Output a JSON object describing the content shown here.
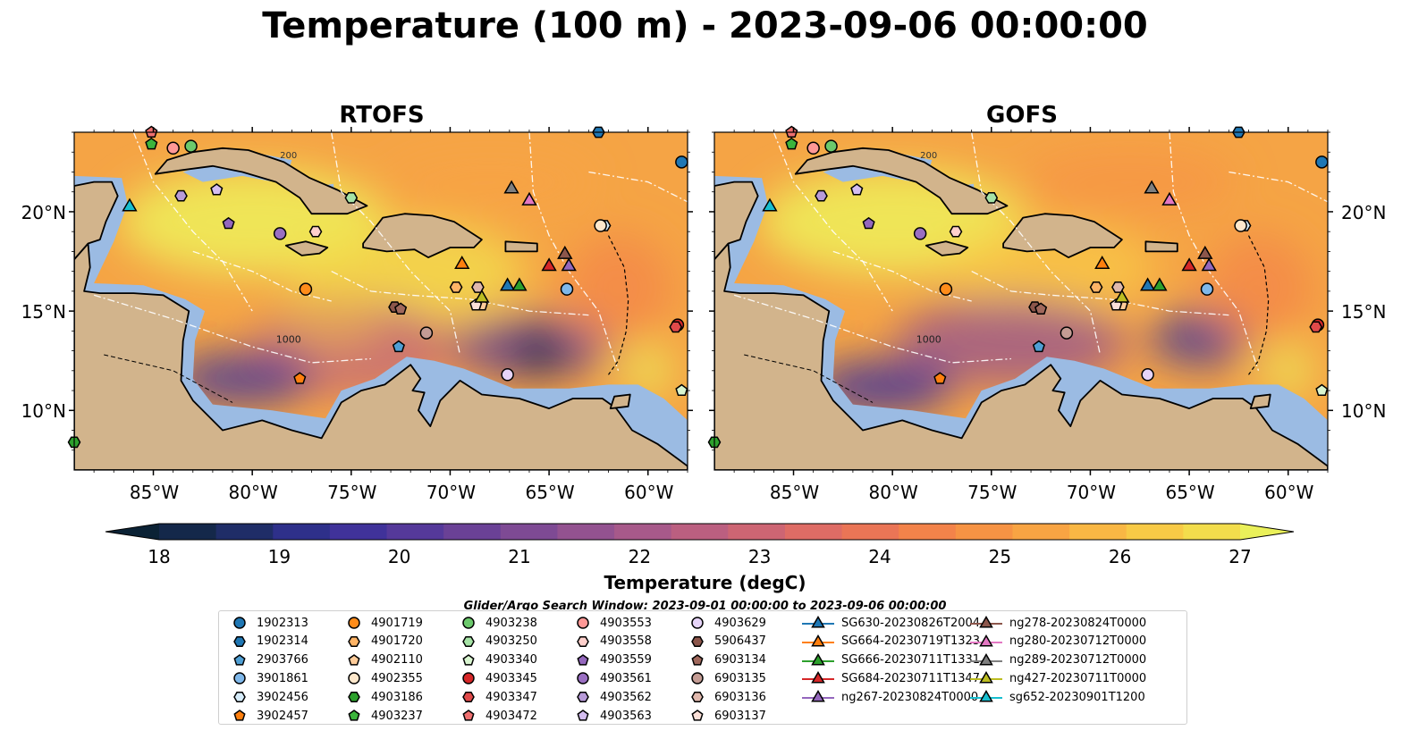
{
  "title": "Temperature (100 m) - 2023-09-06 00:00:00",
  "panels": [
    {
      "title": "RTOFS"
    },
    {
      "title": "GOFS"
    }
  ],
  "chart_data": {
    "type": "heatmap",
    "title": "Temperature (100 m) - 2023-09-06 00:00:00",
    "subplots": [
      "RTOFS",
      "GOFS"
    ],
    "xlim": [
      -89,
      -58
    ],
    "ylim": [
      7,
      24
    ],
    "xticks": [
      -85,
      -80,
      -75,
      -70,
      -65,
      -60
    ],
    "xtick_labels": [
      "85°W",
      "80°W",
      "75°W",
      "70°W",
      "65°W",
      "60°W"
    ],
    "yticks": [
      10,
      15,
      20
    ],
    "ytick_labels": [
      "10°N",
      "15°N",
      "20°N"
    ],
    "colorbar": {
      "label": "Temperature (degC)",
      "min": 18,
      "max": 27,
      "ticks": [
        18,
        19,
        20,
        21,
        22,
        23,
        24,
        25,
        26,
        27
      ],
      "tick_labels": [
        "18",
        "19",
        "20",
        "21",
        "22",
        "23",
        "24",
        "25",
        "26",
        "27"
      ],
      "colors": [
        "#0b2235",
        "#14284a",
        "#1f2d67",
        "#2e308a",
        "#40329a",
        "#55399a",
        "#6a4196",
        "#7e4a94",
        "#935290",
        "#a7598a",
        "#bb5f80",
        "#cd6573",
        "#de6c65",
        "#ea7556",
        "#f3834a",
        "#f69344",
        "#f8a443",
        "#f9b744",
        "#f8ca46",
        "#f3dd4c",
        "#eaf05a"
      ]
    },
    "contour_labels": [
      "200",
      "1000"
    ],
    "search_window": "Glider/Argo Search Window: 2023-09-01 00:00:00 to 2023-09-06 00:00:00",
    "legend": {
      "argo": [
        {
          "name": "1902313",
          "marker": "circle",
          "color": "#1f77b4"
        },
        {
          "name": "1902314",
          "marker": "hexagon",
          "color": "#1f77b4"
        },
        {
          "name": "2903766",
          "marker": "pentagon",
          "color": "#4f9fd4"
        },
        {
          "name": "3901861",
          "marker": "circle",
          "color": "#7fb8ea"
        },
        {
          "name": "3902456",
          "marker": "hexagon",
          "color": "#d6ecfa"
        },
        {
          "name": "3902457",
          "marker": "pentagon",
          "color": "#ff7f0e"
        },
        {
          "name": "4901719",
          "marker": "circle",
          "color": "#ff8c1a"
        },
        {
          "name": "4901720",
          "marker": "hexagon",
          "color": "#ffb466"
        },
        {
          "name": "4902110",
          "marker": "pentagon",
          "color": "#ffcc99"
        },
        {
          "name": "4902355",
          "marker": "circle",
          "color": "#ffe8cc"
        },
        {
          "name": "4903186",
          "marker": "hexagon",
          "color": "#2ca02c"
        },
        {
          "name": "4903237",
          "marker": "pentagon",
          "color": "#3cb43c"
        },
        {
          "name": "4903238",
          "marker": "circle",
          "color": "#6cc96c"
        },
        {
          "name": "4903250",
          "marker": "hexagon",
          "color": "#a6e3a6"
        },
        {
          "name": "4903340",
          "marker": "pentagon",
          "color": "#d9f5d0"
        },
        {
          "name": "4903345",
          "marker": "circle",
          "color": "#d62728"
        },
        {
          "name": "4903347",
          "marker": "hexagon",
          "color": "#e04a4a"
        },
        {
          "name": "4903472",
          "marker": "pentagon",
          "color": "#f07070"
        },
        {
          "name": "4903553",
          "marker": "circle",
          "color": "#ff9896"
        },
        {
          "name": "4903558",
          "marker": "hexagon",
          "color": "#ffd0cc"
        },
        {
          "name": "4903559",
          "marker": "pentagon",
          "color": "#9467bd"
        },
        {
          "name": "4903561",
          "marker": "circle",
          "color": "#9a6fc2"
        },
        {
          "name": "4903562",
          "marker": "hexagon",
          "color": "#b89bd9"
        },
        {
          "name": "4903563",
          "marker": "pentagon",
          "color": "#d4bdf0"
        },
        {
          "name": "4903629",
          "marker": "circle",
          "color": "#e6d4f8"
        },
        {
          "name": "5906437",
          "marker": "hexagon",
          "color": "#8c564b"
        },
        {
          "name": "6903134",
          "marker": "pentagon",
          "color": "#a0685c"
        },
        {
          "name": "6903135",
          "marker": "circle",
          "color": "#c49c94"
        },
        {
          "name": "6903136",
          "marker": "hexagon",
          "color": "#e0b8ad"
        },
        {
          "name": "6903137",
          "marker": "pentagon",
          "color": "#fbe0d8"
        }
      ],
      "gliders": [
        {
          "name": "SG630-20230826T2004",
          "color": "#1f77b4"
        },
        {
          "name": "SG664-20230719T1323",
          "color": "#ff7f0e"
        },
        {
          "name": "SG666-20230711T1331",
          "color": "#2ca02c"
        },
        {
          "name": "SG684-20230711T1347",
          "color": "#d62728"
        },
        {
          "name": "ng267-20230824T0000",
          "color": "#9467bd"
        },
        {
          "name": "ng278-20230824T0000",
          "color": "#8c564b"
        },
        {
          "name": "ng280-20230712T0000",
          "color": "#e377c2"
        },
        {
          "name": "ng289-20230712T0000",
          "color": "#7f7f7f"
        },
        {
          "name": "ng427-20230711T0000",
          "color": "#bcbd22"
        },
        {
          "name": "sg652-20230901T1200",
          "color": "#17becf"
        }
      ]
    },
    "argo_positions": [
      {
        "id": "1902313",
        "lon": -58.3,
        "lat": 22.5
      },
      {
        "id": "1902314",
        "lon": -62.5,
        "lat": 24.0
      },
      {
        "id": "2903766",
        "lon": -72.6,
        "lat": 13.2
      },
      {
        "id": "3901861",
        "lon": -64.1,
        "lat": 16.1
      },
      {
        "id": "3902456",
        "lon": -62.2,
        "lat": 19.3
      },
      {
        "id": "3902457",
        "lon": -77.6,
        "lat": 11.6
      },
      {
        "id": "4901719",
        "lon": -77.3,
        "lat": 16.1
      },
      {
        "id": "4901720",
        "lon": -69.7,
        "lat": 16.2
      },
      {
        "id": "4902110",
        "lon": -68.4,
        "lat": 15.3
      },
      {
        "id": "4902355",
        "lon": -62.4,
        "lat": 19.3
      },
      {
        "id": "4903186",
        "lon": -89.0,
        "lat": 8.4
      },
      {
        "id": "4903237",
        "lon": -85.1,
        "lat": 23.4
      },
      {
        "id": "4903238",
        "lon": -83.1,
        "lat": 23.3
      },
      {
        "id": "4903250",
        "lon": -75.0,
        "lat": 20.7
      },
      {
        "id": "4903340",
        "lon": -58.3,
        "lat": 11.0
      },
      {
        "id": "4903345",
        "lon": -58.5,
        "lat": 14.3
      },
      {
        "id": "4903347",
        "lon": -58.6,
        "lat": 14.2
      },
      {
        "id": "4903472",
        "lon": -85.1,
        "lat": 24.0
      },
      {
        "id": "4903553",
        "lon": -84.0,
        "lat": 23.2
      },
      {
        "id": "4903558",
        "lon": -76.8,
        "lat": 19.0
      },
      {
        "id": "4903559",
        "lon": -81.2,
        "lat": 19.4
      },
      {
        "id": "4903561",
        "lon": -78.6,
        "lat": 18.9
      },
      {
        "id": "4903562",
        "lon": -83.6,
        "lat": 20.8
      },
      {
        "id": "4903563",
        "lon": -81.8,
        "lat": 21.1
      },
      {
        "id": "4903629",
        "lon": -67.1,
        "lat": 11.8
      },
      {
        "id": "5906437",
        "lon": -72.8,
        "lat": 15.2
      },
      {
        "id": "6903134",
        "lon": -72.5,
        "lat": 15.1
      },
      {
        "id": "6903135",
        "lon": -71.2,
        "lat": 13.9
      },
      {
        "id": "6903136",
        "lon": -68.6,
        "lat": 16.2
      },
      {
        "id": "6903137",
        "lon": -68.7,
        "lat": 15.3
      }
    ],
    "glider_positions": [
      {
        "id": "SG630-20230826T2004",
        "lon": -67.1,
        "lat": 16.2
      },
      {
        "id": "SG664-20230719T1323",
        "lon": -69.4,
        "lat": 17.3
      },
      {
        "id": "SG666-20230711T1331",
        "lon": -66.5,
        "lat": 16.2
      },
      {
        "id": "SG684-20230711T1347",
        "lon": -65.0,
        "lat": 17.2
      },
      {
        "id": "ng267-20230824T0000",
        "lon": -64.0,
        "lat": 17.2
      },
      {
        "id": "ng278-20230824T0000",
        "lon": -64.2,
        "lat": 17.8
      },
      {
        "id": "ng280-20230712T0000",
        "lon": -66.0,
        "lat": 20.5
      },
      {
        "id": "ng289-20230712T0000",
        "lon": -66.9,
        "lat": 21.1
      },
      {
        "id": "ng427-20230711T0000",
        "lon": -68.4,
        "lat": 15.6
      },
      {
        "id": "sg652-20230901T1200",
        "lon": -86.2,
        "lat": 20.2
      }
    ]
  }
}
